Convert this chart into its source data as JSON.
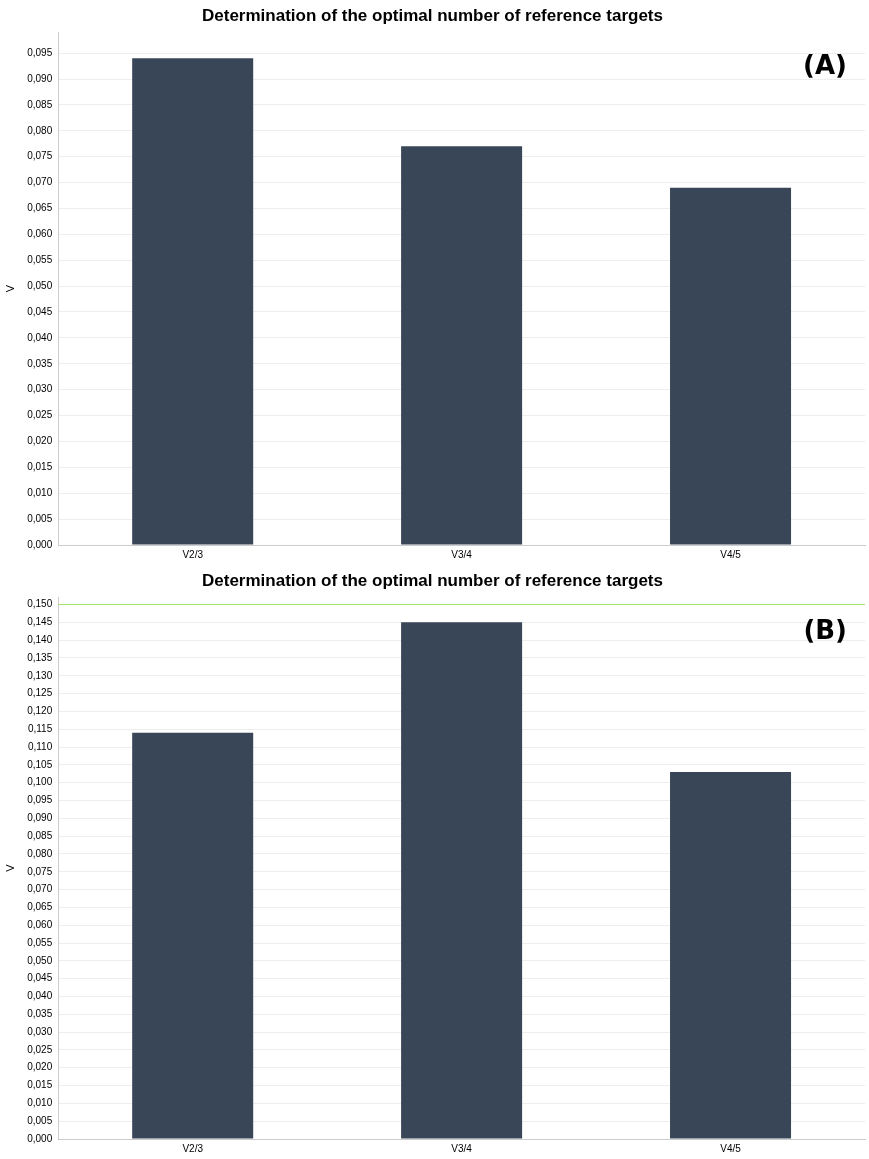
{
  "chart_data": [
    {
      "type": "bar",
      "title": "Determination of the optimal number of reference targets",
      "ylabel": "V",
      "categories": [
        "V2/3",
        "V3/4",
        "V4/5"
      ],
      "values": [
        0.094,
        0.077,
        0.069
      ],
      "color": "#384657",
      "ylim": [
        0,
        0.099
      ],
      "yticks": [
        {
          "value": 0,
          "label": "0,000"
        },
        {
          "value": 0.005,
          "label": "0,005"
        },
        {
          "value": 0.01,
          "label": "0,010"
        },
        {
          "value": 0.015,
          "label": "0,015"
        },
        {
          "value": 0.02,
          "label": "0,020"
        },
        {
          "value": 0.025,
          "label": "0,025"
        },
        {
          "value": 0.03,
          "label": "0,030"
        },
        {
          "value": 0.035,
          "label": "0,035"
        },
        {
          "value": 0.04,
          "label": "0,040"
        },
        {
          "value": 0.045,
          "label": "0,045"
        },
        {
          "value": 0.05,
          "label": "0,050"
        },
        {
          "value": 0.055,
          "label": "0,055"
        },
        {
          "value": 0.06,
          "label": "0,060"
        },
        {
          "value": 0.065,
          "label": "0,065"
        },
        {
          "value": 0.07,
          "label": "0,070"
        },
        {
          "value": 0.075,
          "label": "0,075"
        },
        {
          "value": 0.08,
          "label": "0,080"
        },
        {
          "value": 0.085,
          "label": "0,085"
        },
        {
          "value": 0.09,
          "label": "0,090"
        },
        {
          "value": 0.095,
          "label": "0,095"
        }
      ],
      "grid": "y",
      "annotations": [
        "(A)"
      ]
    },
    {
      "type": "bar",
      "title": "Determination of the optimal number of reference targets",
      "ylabel": "V",
      "categories": [
        "V2/3",
        "V3/4",
        "V4/5"
      ],
      "values": [
        0.114,
        0.145,
        0.103
      ],
      "color": "#384657",
      "ylim": [
        0,
        0.152
      ],
      "yticks": [
        {
          "value": 0,
          "label": "0,000"
        },
        {
          "value": 0.005,
          "label": "0,005"
        },
        {
          "value": 0.01,
          "label": "0,010"
        },
        {
          "value": 0.015,
          "label": "0,015"
        },
        {
          "value": 0.02,
          "label": "0,020"
        },
        {
          "value": 0.025,
          "label": "0,025"
        },
        {
          "value": 0.03,
          "label": "0,030"
        },
        {
          "value": 0.035,
          "label": "0,035"
        },
        {
          "value": 0.04,
          "label": "0,040"
        },
        {
          "value": 0.045,
          "label": "0,045"
        },
        {
          "value": 0.05,
          "label": "0,050"
        },
        {
          "value": 0.055,
          "label": "0,055"
        },
        {
          "value": 0.06,
          "label": "0,060"
        },
        {
          "value": 0.065,
          "label": "0,065"
        },
        {
          "value": 0.07,
          "label": "0,070"
        },
        {
          "value": 0.075,
          "label": "0,075"
        },
        {
          "value": 0.08,
          "label": "0,080"
        },
        {
          "value": 0.085,
          "label": "0,085"
        },
        {
          "value": 0.09,
          "label": "0,090"
        },
        {
          "value": 0.095,
          "label": "0,095"
        },
        {
          "value": 0.1,
          "label": "0,100"
        },
        {
          "value": 0.105,
          "label": "0,105"
        },
        {
          "value": 0.11,
          "label": "0,110"
        },
        {
          "value": 0.115,
          "label": "0,115"
        },
        {
          "value": 0.12,
          "label": "0,120"
        },
        {
          "value": 0.125,
          "label": "0,125"
        },
        {
          "value": 0.13,
          "label": "0,130"
        },
        {
          "value": 0.135,
          "label": "0,135"
        },
        {
          "value": 0.14,
          "label": "0,140"
        },
        {
          "value": 0.145,
          "label": "0,145"
        },
        {
          "value": 0.15,
          "label": "0,150"
        }
      ],
      "grid": "y",
      "ref_lines": [
        {
          "axis": "y",
          "value": 0.15,
          "color": "#a6e36b"
        }
      ],
      "annotations": [
        "(B)"
      ]
    }
  ]
}
